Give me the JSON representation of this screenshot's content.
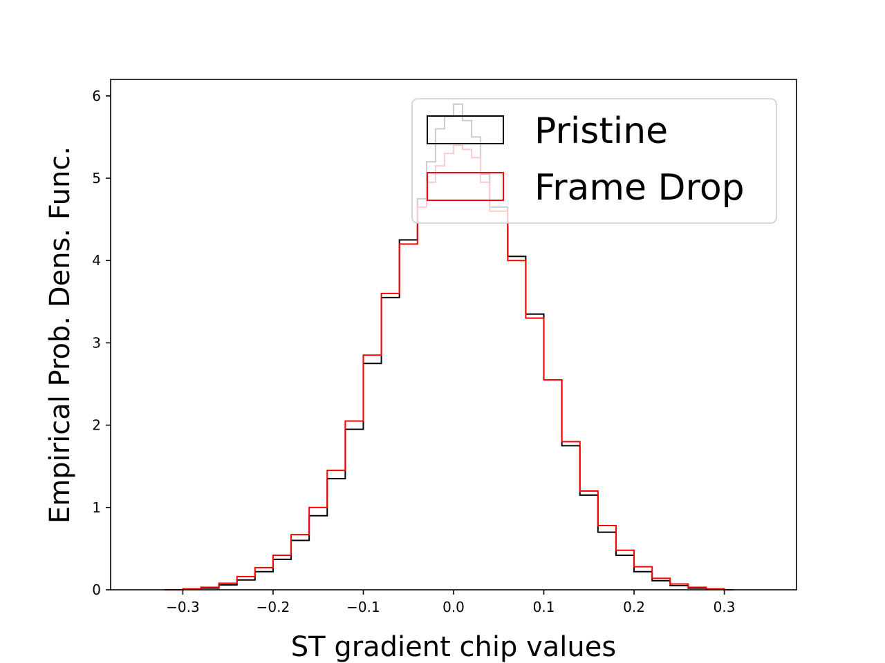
{
  "chart_data": {
    "type": "histogram-step",
    "xlabel": "ST gradient chip values",
    "ylabel": "Empirical Prob. Dens. Func.",
    "xlim": [
      -0.38,
      0.38
    ],
    "ylim": [
      0,
      6.2
    ],
    "xticks": [
      {
        "value": -0.3,
        "label": "−0.3"
      },
      {
        "value": -0.2,
        "label": "−0.2"
      },
      {
        "value": -0.1,
        "label": "−0.1"
      },
      {
        "value": 0.0,
        "label": "0.0"
      },
      {
        "value": 0.1,
        "label": "0.1"
      },
      {
        "value": 0.2,
        "label": "0.2"
      },
      {
        "value": 0.3,
        "label": "0.3"
      }
    ],
    "yticks": [
      {
        "value": 0,
        "label": "0"
      },
      {
        "value": 1,
        "label": "1"
      },
      {
        "value": 2,
        "label": "2"
      },
      {
        "value": 3,
        "label": "3"
      },
      {
        "value": 4,
        "label": "4"
      },
      {
        "value": 5,
        "label": "5"
      },
      {
        "value": 6,
        "label": "6"
      }
    ],
    "legend": {
      "placement": "top-right"
    },
    "series": [
      {
        "name": "Pristine",
        "color": "#000000",
        "x": [
          -0.32,
          -0.3,
          -0.28,
          -0.26,
          -0.24,
          -0.22,
          -0.2,
          -0.18,
          -0.16,
          -0.14,
          -0.12,
          -0.1,
          -0.08,
          -0.06,
          -0.04,
          -0.03,
          -0.02,
          -0.01,
          0.0,
          0.01,
          0.02,
          0.03,
          0.04,
          0.06,
          0.08,
          0.1,
          0.12,
          0.14,
          0.16,
          0.18,
          0.2,
          0.22,
          0.24,
          0.26,
          0.28,
          0.3,
          0.31
        ],
        "y": [
          0.0,
          0.01,
          0.02,
          0.06,
          0.12,
          0.22,
          0.37,
          0.6,
          0.9,
          1.35,
          1.95,
          2.75,
          3.55,
          4.25,
          4.75,
          5.2,
          5.6,
          5.75,
          5.9,
          5.7,
          5.5,
          5.05,
          4.65,
          4.05,
          3.35,
          2.55,
          1.75,
          1.15,
          0.7,
          0.42,
          0.22,
          0.11,
          0.05,
          0.02,
          0.01,
          0.0,
          0.0
        ]
      },
      {
        "name": "Frame Drop",
        "color": "#ff0000",
        "x": [
          -0.32,
          -0.3,
          -0.28,
          -0.26,
          -0.24,
          -0.22,
          -0.2,
          -0.18,
          -0.16,
          -0.14,
          -0.12,
          -0.1,
          -0.08,
          -0.06,
          -0.04,
          -0.03,
          -0.02,
          -0.01,
          0.0,
          0.01,
          0.02,
          0.03,
          0.04,
          0.06,
          0.08,
          0.1,
          0.12,
          0.14,
          0.16,
          0.18,
          0.2,
          0.22,
          0.24,
          0.26,
          0.28,
          0.3,
          0.31
        ],
        "y": [
          0.0,
          0.01,
          0.03,
          0.08,
          0.16,
          0.27,
          0.42,
          0.67,
          1.0,
          1.45,
          2.05,
          2.85,
          3.6,
          4.2,
          4.65,
          4.95,
          5.15,
          5.3,
          5.4,
          5.35,
          5.25,
          4.95,
          4.6,
          4.0,
          3.3,
          2.55,
          1.8,
          1.2,
          0.78,
          0.48,
          0.28,
          0.14,
          0.07,
          0.03,
          0.01,
          0.0,
          0.0
        ]
      }
    ]
  }
}
